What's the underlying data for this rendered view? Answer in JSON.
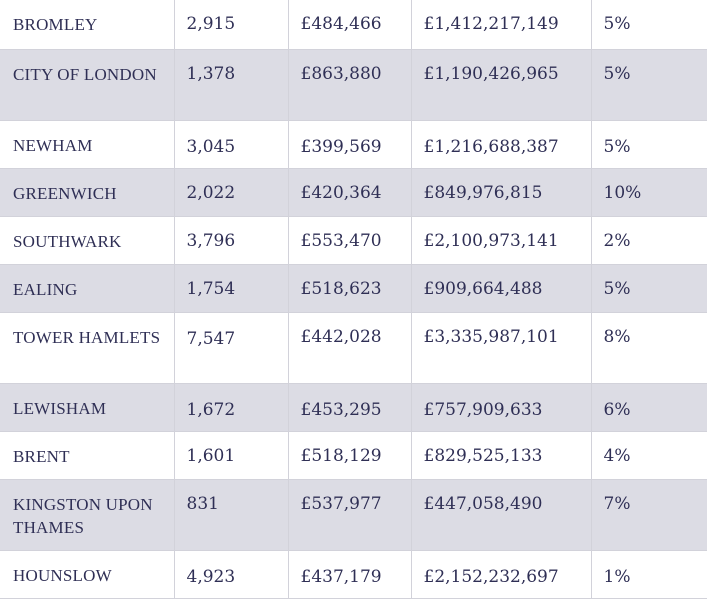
{
  "rows": [
    {
      "borough": "BROMLEY",
      "sales": "2,915",
      "avg_price": "£484,466",
      "total": "£1,412,217,149",
      "pct": "5%"
    },
    {
      "borough": "CITY OF LONDON",
      "sales": "1,378",
      "avg_price": "£863,880",
      "total": "£1,190,426,965",
      "pct": "5%"
    },
    {
      "borough": "NEWHAM",
      "sales": "3,045",
      "avg_price": "£399,569",
      "total": "£1,216,688,387",
      "pct": "5%"
    },
    {
      "borough": "GREENWICH",
      "sales": "2,022",
      "avg_price": "£420,364",
      "total": "£849,976,815",
      "pct": "10%"
    },
    {
      "borough": "SOUTHWARK",
      "sales": "3,796",
      "avg_price": "£553,470",
      "total": "£2,100,973,141",
      "pct": "2%"
    },
    {
      "borough": "EALING",
      "sales": "1,754",
      "avg_price": "£518,623",
      "total": "£909,664,488",
      "pct": "5%"
    },
    {
      "borough": "TOWER HAMLETS",
      "sales": "7,547",
      "avg_price": "£442,028",
      "total": "£3,335,987,101",
      "pct": "8%"
    },
    {
      "borough": "LEWISHAM",
      "sales": "1,672",
      "avg_price": "£453,295",
      "total": "£757,909,633",
      "pct": "6%"
    },
    {
      "borough": "BRENT",
      "sales": "1,601",
      "avg_price": "£518,129",
      "total": "£829,525,133",
      "pct": "4%"
    },
    {
      "borough": "KINGSTON UPON THAMES",
      "sales": "831",
      "avg_price": "£537,977",
      "total": "£447,058,490",
      "pct": "7%"
    },
    {
      "borough": "HOUNSLOW",
      "sales": "4,923",
      "avg_price": "£437,179",
      "total": "£2,152,232,697",
      "pct": "1%"
    }
  ]
}
